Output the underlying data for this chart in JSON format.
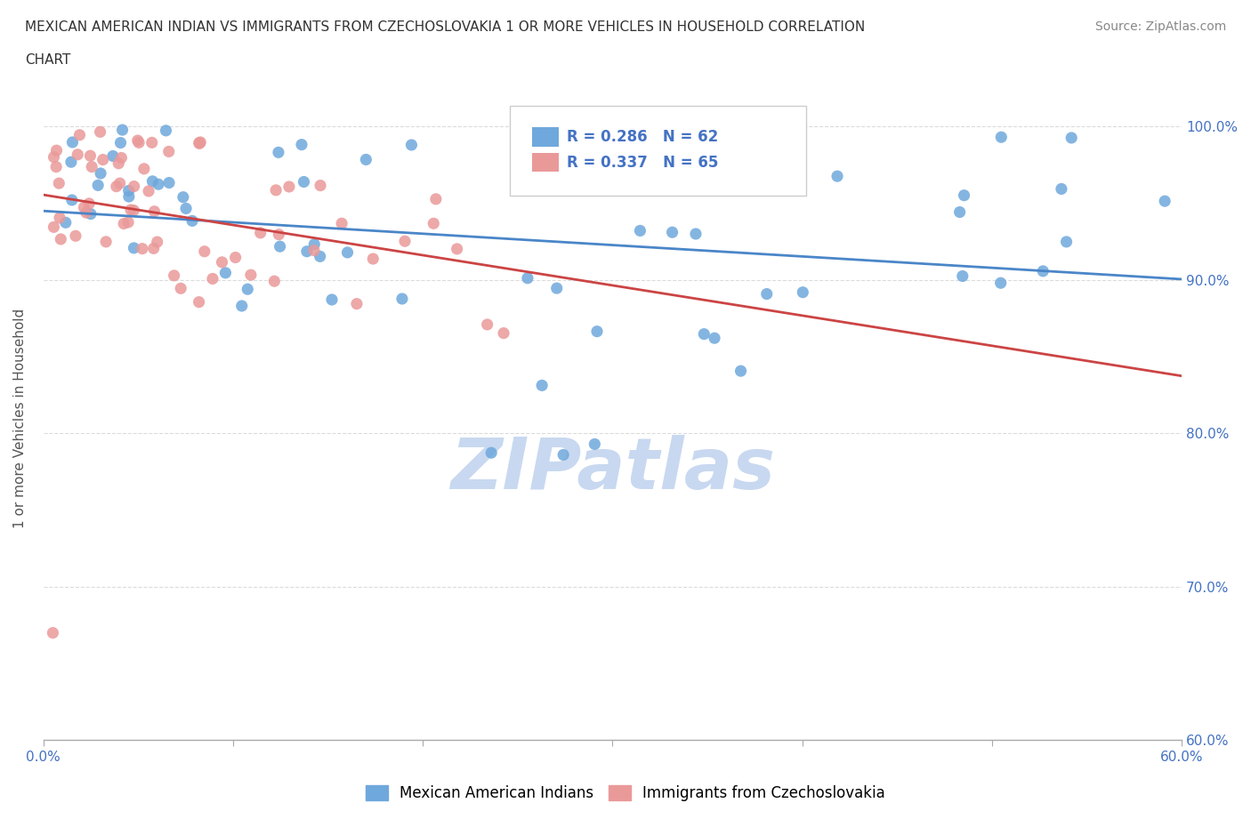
{
  "title_line1": "MEXICAN AMERICAN INDIAN VS IMMIGRANTS FROM CZECHOSLOVAKIA 1 OR MORE VEHICLES IN HOUSEHOLD CORRELATION",
  "title_line2": "CHART",
  "source_text": "Source: ZipAtlas.com",
  "ylabel": "1 or more Vehicles in Household",
  "x_min": 0.0,
  "x_max": 0.6,
  "y_min": 0.6,
  "y_max": 1.02,
  "x_tick_positions": [
    0.0,
    0.1,
    0.2,
    0.3,
    0.4,
    0.5,
    0.6
  ],
  "x_tick_labels": [
    "0.0%",
    "",
    "",
    "",
    "",
    "",
    "60.0%"
  ],
  "y_tick_positions": [
    0.6,
    0.7,
    0.8,
    0.9,
    1.0
  ],
  "y_tick_labels": [
    "60.0%",
    "70.0%",
    "80.0%",
    "90.0%",
    "100.0%"
  ],
  "blue_color": "#6fa8dc",
  "pink_color": "#ea9999",
  "blue_line_color": "#4a86c8",
  "pink_line_color": "#cc4444",
  "R_blue": 0.286,
  "N_blue": 62,
  "R_pink": 0.337,
  "N_pink": 65,
  "watermark_color": "#c8d8f0",
  "label_color": "#4472c4",
  "title_color": "#333333",
  "source_color": "#888888",
  "ylabel_color": "#555555",
  "grid_color": "#cccccc",
  "bottom_legend_labels": [
    "Mexican American Indians",
    "Immigrants from Czechoslovakia"
  ]
}
